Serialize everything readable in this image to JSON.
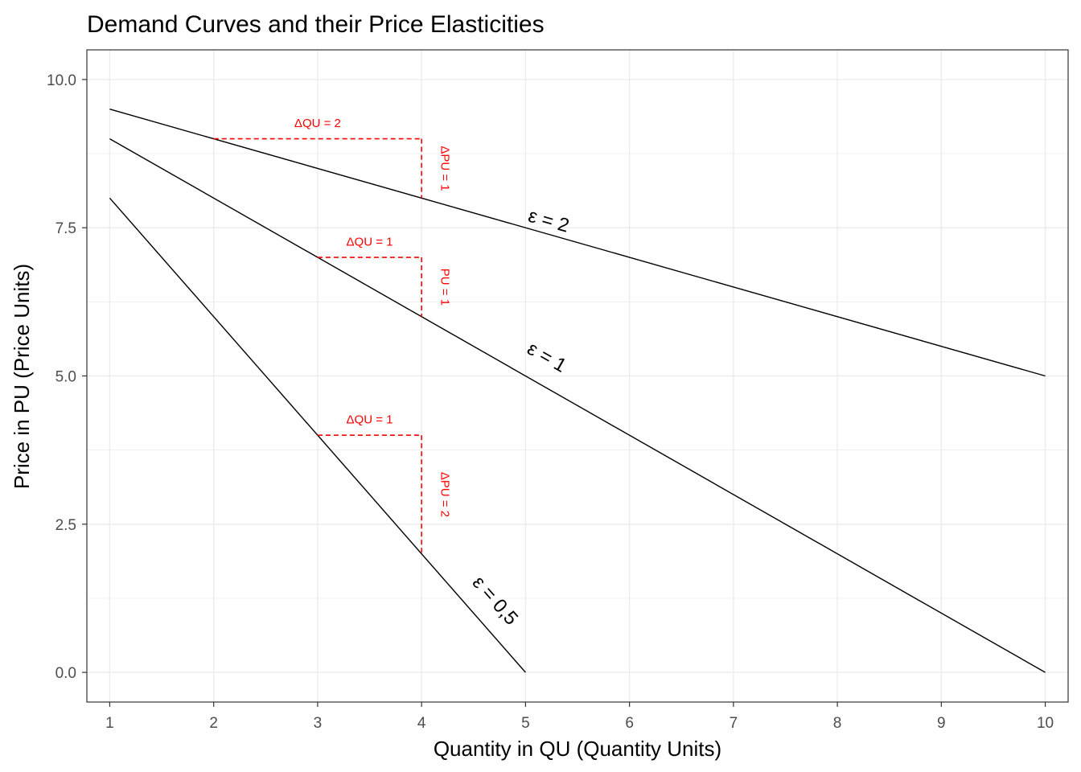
{
  "chart_data": {
    "type": "line",
    "title": "Demand Curves and their Price Elasticities",
    "xlabel": "Quantity in QU (Quantity Units)",
    "ylabel": "Price in PU (Price Units)",
    "xlim": [
      0.78,
      10.22
    ],
    "ylim": [
      -0.5,
      10.5
    ],
    "x_ticks": [
      1,
      2,
      3,
      4,
      5,
      6,
      7,
      8,
      9,
      10
    ],
    "y_ticks": [
      0,
      2.5,
      5,
      7.5,
      10
    ],
    "y_tick_labels": [
      "0.0",
      "2.5",
      "5.0",
      "7.5",
      "10.0"
    ],
    "grid": true,
    "series": [
      {
        "label": "ε = 2",
        "x": [
          1,
          10
        ],
        "y": [
          9.5,
          5
        ]
      },
      {
        "label": "ε = 1",
        "x": [
          1,
          10
        ],
        "y": [
          9,
          0
        ]
      },
      {
        "label": "ε = 0,5",
        "x": [
          1,
          5
        ],
        "y": [
          8,
          0
        ]
      }
    ],
    "annotations": [
      {
        "type": "horizontal-dashed",
        "x": [
          2,
          4
        ],
        "y": 9,
        "label": "ΔQU = 2",
        "label_x": 3,
        "label_y": 9.2
      },
      {
        "type": "vertical-dashed",
        "x": 4,
        "y": [
          9,
          8
        ],
        "label": "ΔPU = 1",
        "label_x": 4.22,
        "label_y": 8.5
      },
      {
        "type": "horizontal-dashed",
        "x": [
          3,
          4
        ],
        "y": 7,
        "label": "ΔQU = 1",
        "label_x": 3.5,
        "label_y": 7.2
      },
      {
        "type": "vertical-dashed",
        "x": 4,
        "y": [
          7,
          6
        ],
        "label": "PU = 1",
        "label_x": 4.22,
        "label_y": 6.5
      },
      {
        "type": "horizontal-dashed",
        "x": [
          3,
          4
        ],
        "y": 4,
        "label": "ΔQU = 1",
        "label_x": 3.5,
        "label_y": 4.2
      },
      {
        "type": "vertical-dashed",
        "x": 4,
        "y": [
          4,
          2
        ],
        "label": "ΔPU = 2",
        "label_x": 4.22,
        "label_y": 3
      }
    ],
    "curve_labels": [
      {
        "text": "ε = 2",
        "x": 5.22,
        "y": 7.6
      },
      {
        "text": "ε = 1",
        "x": 5.2,
        "y": 5.3
      },
      {
        "text": "ε = 0,5",
        "x": 4.7,
        "y": 1.2
      }
    ],
    "colors": {
      "curve": "#000000",
      "annotation": "#ff0000",
      "grid": "#ebebeb",
      "panel_border": "#333333"
    }
  }
}
